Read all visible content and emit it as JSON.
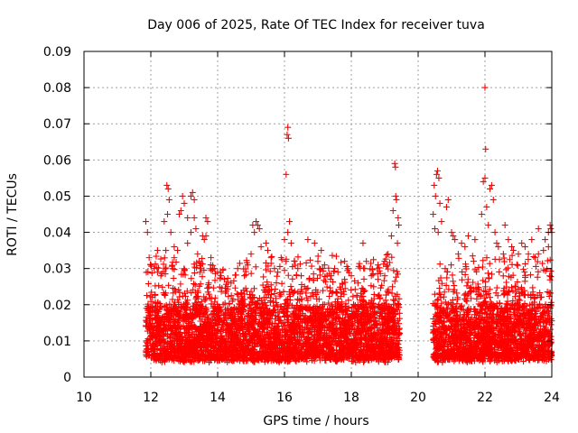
{
  "chart_data": {
    "type": "scatter",
    "title": "Day 006 of 2025, Rate Of TEC Index for receiver tuva",
    "xlabel": "GPS time / hours",
    "ylabel": "ROTI / TECUs",
    "xlim": [
      10,
      24
    ],
    "ylim": [
      0,
      0.09
    ],
    "x_ticks": [
      "10",
      "12",
      "14",
      "16",
      "18",
      "20",
      "22",
      "24"
    ],
    "y_ticks": [
      "0",
      "0.01",
      "0.02",
      "0.03",
      "0.04",
      "0.05",
      "0.06",
      "0.07",
      "0.08",
      "0.09"
    ],
    "grid": true,
    "marker": "+",
    "color": "#ff0000",
    "observed_spans_hours": [
      [
        11.85,
        19.45
      ],
      [
        20.45,
        24.0
      ]
    ],
    "typical_range": [
      0.005,
      0.025
    ],
    "series": [
      {
        "points": [
          [
            11.85,
            0.043
          ],
          [
            11.9,
            0.04
          ],
          [
            11.95,
            0.033
          ],
          [
            12.0,
            0.031
          ],
          [
            12.1,
            0.03
          ],
          [
            12.2,
            0.029
          ],
          [
            12.3,
            0.028
          ],
          [
            12.4,
            0.043
          ],
          [
            12.48,
            0.053
          ],
          [
            12.52,
            0.052
          ],
          [
            12.55,
            0.049
          ],
          [
            12.5,
            0.045
          ],
          [
            12.6,
            0.04
          ],
          [
            12.7,
            0.033
          ],
          [
            12.8,
            0.035
          ],
          [
            12.85,
            0.045
          ],
          [
            12.9,
            0.046
          ],
          [
            12.95,
            0.05
          ],
          [
            13.0,
            0.048
          ],
          [
            13.1,
            0.044
          ],
          [
            13.2,
            0.05
          ],
          [
            13.25,
            0.051
          ],
          [
            13.3,
            0.049
          ],
          [
            13.3,
            0.044
          ],
          [
            13.35,
            0.041
          ],
          [
            13.2,
            0.04
          ],
          [
            13.4,
            0.034
          ],
          [
            13.5,
            0.03
          ],
          [
            13.6,
            0.038
          ],
          [
            13.65,
            0.044
          ],
          [
            13.7,
            0.043
          ],
          [
            13.65,
            0.039
          ],
          [
            13.8,
            0.033
          ],
          [
            13.9,
            0.03
          ],
          [
            14.0,
            0.029
          ],
          [
            14.2,
            0.027
          ],
          [
            14.4,
            0.026
          ],
          [
            14.6,
            0.03
          ],
          [
            14.8,
            0.028
          ],
          [
            15.0,
            0.034
          ],
          [
            15.1,
            0.04
          ],
          [
            15.15,
            0.043
          ],
          [
            15.2,
            0.042
          ],
          [
            15.3,
            0.036
          ],
          [
            15.45,
            0.037
          ],
          [
            15.6,
            0.033
          ],
          [
            15.7,
            0.03
          ],
          [
            15.8,
            0.029
          ],
          [
            15.9,
            0.033
          ],
          [
            16.0,
            0.038
          ],
          [
            16.05,
            0.056
          ],
          [
            16.08,
            0.067
          ],
          [
            16.1,
            0.069
          ],
          [
            16.12,
            0.066
          ],
          [
            16.15,
            0.043
          ],
          [
            16.1,
            0.04
          ],
          [
            16.2,
            0.037
          ],
          [
            16.3,
            0.032
          ],
          [
            16.5,
            0.028
          ],
          [
            16.6,
            0.025
          ],
          [
            16.7,
            0.038
          ],
          [
            16.9,
            0.037
          ],
          [
            17.0,
            0.032
          ],
          [
            17.2,
            0.031
          ],
          [
            17.4,
            0.028
          ],
          [
            17.6,
            0.029
          ],
          [
            17.8,
            0.027
          ],
          [
            17.9,
            0.03
          ],
          [
            18.0,
            0.028
          ],
          [
            18.2,
            0.026
          ],
          [
            18.35,
            0.037
          ],
          [
            18.4,
            0.03
          ],
          [
            18.6,
            0.028
          ],
          [
            18.8,
            0.027
          ],
          [
            19.0,
            0.028
          ],
          [
            19.2,
            0.039
          ],
          [
            19.3,
            0.059
          ],
          [
            19.32,
            0.058
          ],
          [
            19.33,
            0.05
          ],
          [
            19.35,
            0.049
          ],
          [
            19.4,
            0.044
          ],
          [
            19.42,
            0.042
          ],
          [
            19.38,
            0.037
          ],
          [
            20.45,
            0.045
          ],
          [
            20.5,
            0.041
          ],
          [
            20.55,
            0.056
          ],
          [
            20.58,
            0.057
          ],
          [
            20.62,
            0.055
          ],
          [
            20.65,
            0.048
          ],
          [
            20.7,
            0.043
          ],
          [
            20.85,
            0.047
          ],
          [
            20.9,
            0.049
          ],
          [
            21.0,
            0.04
          ],
          [
            21.1,
            0.038
          ],
          [
            21.2,
            0.034
          ],
          [
            21.3,
            0.037
          ],
          [
            21.5,
            0.039
          ],
          [
            21.7,
            0.038
          ],
          [
            21.9,
            0.045
          ],
          [
            21.95,
            0.054
          ],
          [
            22.0,
            0.055
          ],
          [
            22.02,
            0.063
          ],
          [
            22.0,
            0.08
          ],
          [
            22.05,
            0.047
          ],
          [
            22.1,
            0.042
          ],
          [
            22.15,
            0.052
          ],
          [
            22.2,
            0.053
          ],
          [
            22.25,
            0.049
          ],
          [
            22.3,
            0.04
          ],
          [
            22.4,
            0.036
          ],
          [
            22.55,
            0.034
          ],
          [
            22.6,
            0.042
          ],
          [
            22.8,
            0.036
          ],
          [
            23.0,
            0.034
          ],
          [
            23.1,
            0.037
          ],
          [
            23.2,
            0.036
          ],
          [
            23.4,
            0.038
          ],
          [
            23.6,
            0.034
          ],
          [
            23.8,
            0.038
          ],
          [
            23.9,
            0.04
          ],
          [
            23.95,
            0.042
          ],
          [
            23.97,
            0.041
          ],
          [
            24.0,
            0.04
          ],
          [
            23.9,
            0.036
          ],
          [
            23.6,
            0.041
          ],
          [
            12.7,
            0.036
          ],
          [
            13.55,
            0.039
          ],
          [
            14.1,
            0.028
          ],
          [
            14.9,
            0.031
          ],
          [
            15.5,
            0.035
          ],
          [
            16.4,
            0.03
          ],
          [
            17.1,
            0.035
          ],
          [
            17.5,
            0.03
          ],
          [
            18.8,
            0.031
          ],
          [
            19.1,
            0.034
          ],
          [
            20.6,
            0.04
          ],
          [
            21.4,
            0.036
          ],
          [
            22.7,
            0.038
          ],
          [
            23.3,
            0.034
          ],
          [
            23.75,
            0.035
          ],
          [
            12.2,
            0.035
          ],
          [
            12.45,
            0.035
          ],
          [
            13.1,
            0.037
          ],
          [
            15.25,
            0.041
          ],
          [
            15.05,
            0.042
          ],
          [
            18.45,
            0.032
          ],
          [
            19.25,
            0.046
          ],
          [
            20.48,
            0.053
          ],
          [
            20.52,
            0.05
          ],
          [
            21.05,
            0.039
          ],
          [
            22.35,
            0.037
          ],
          [
            22.85,
            0.035
          ],
          [
            23.5,
            0.033
          ],
          [
            14.3,
            0.025
          ],
          [
            17.8,
            0.032
          ]
        ]
      }
    ]
  }
}
